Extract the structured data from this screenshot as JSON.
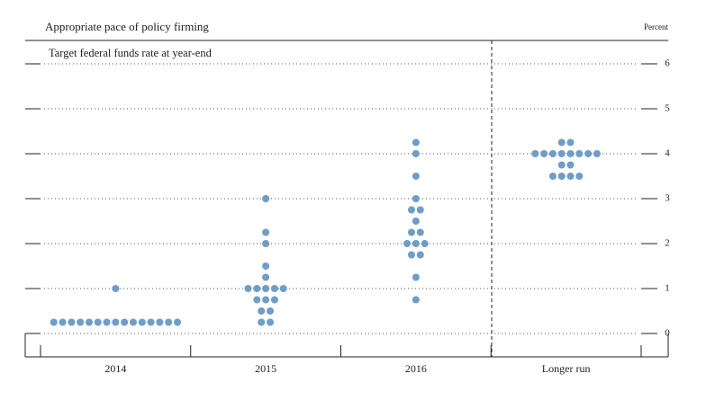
{
  "chart_data": {
    "type": "dot",
    "title": "Appropriate pace of policy firming",
    "subtitle": "Target federal funds rate at year-end",
    "y_unit_label": "Percent",
    "categories": [
      "2014",
      "2015",
      "2016",
      "Longer run"
    ],
    "values": [
      [
        0.25,
        0.25,
        0.25,
        0.25,
        0.25,
        0.25,
        0.25,
        0.25,
        0.25,
        0.25,
        0.25,
        0.25,
        0.25,
        0.25,
        0.25,
        1
      ],
      [
        0.25,
        0.25,
        0.5,
        0.5,
        0.75,
        0.75,
        0.75,
        1,
        1,
        1,
        1,
        1,
        1.25,
        1.5,
        2,
        2.25,
        3
      ],
      [
        0.75,
        1.25,
        1.75,
        1.75,
        2,
        2,
        2,
        2.25,
        2.25,
        2.5,
        2.75,
        2.75,
        3,
        3.5,
        4,
        4.25
      ],
      [
        3.5,
        3.5,
        3.5,
        3.5,
        3.75,
        3.75,
        4,
        4,
        4,
        4,
        4,
        4,
        4,
        4,
        4.25,
        4.25
      ]
    ],
    "color": "#6e9dc9",
    "ylim": [
      -0.5,
      6.5
    ],
    "yticks": [
      0,
      1,
      2,
      3,
      4,
      5,
      6
    ],
    "grid": true
  }
}
